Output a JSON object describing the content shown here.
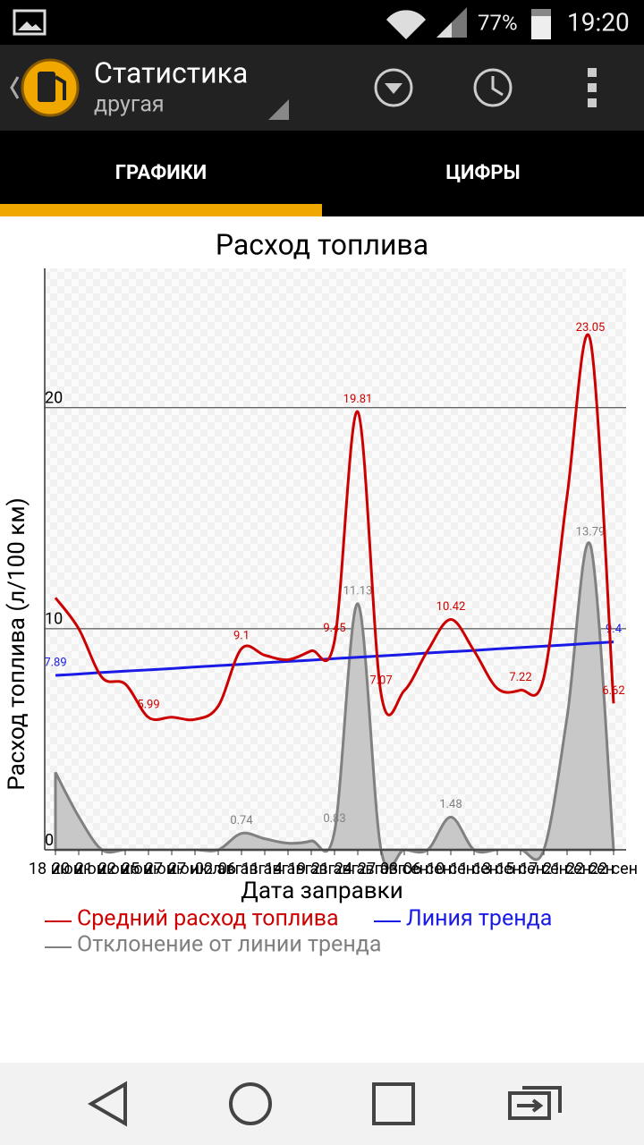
{
  "status_bar": {
    "battery": "77%",
    "time": "19:20"
  },
  "app_bar": {
    "title": "Статистика",
    "subtitle": "другая"
  },
  "tabs": [
    "ГРАФИКИ",
    "ЦИФРЫ"
  ],
  "chart_data": {
    "type": "line",
    "title": "Расход топлива",
    "x_label": "Дата заправки",
    "y_label": "Расход топлива (л/100 км)",
    "categories": [
      "18 июн",
      "20 июн",
      "21 июн",
      "22 июн",
      "25 июн",
      "27 июн",
      "27 июл",
      "02 авг",
      "06 авг",
      "11 авг",
      "14 авг",
      "19 авг",
      "21 авг",
      "24 авг",
      "27 авг",
      "03 сен",
      "06 сен",
      "10 сен",
      "11 сен",
      "13 сен",
      "15 сен",
      "17 сен",
      "21 сен",
      "22 сен",
      "22 сен"
    ],
    "ylim": [
      0,
      26.3
    ],
    "yticks": [
      0,
      10,
      20
    ],
    "grid": true,
    "series": [
      {
        "name": "Средний расход топлива",
        "color": "#cc0000",
        "values": [
          11.4,
          10.0,
          7.8,
          7.5,
          5.99,
          6.0,
          5.9,
          6.5,
          9.1,
          8.8,
          8.6,
          9.0,
          9.45,
          19.81,
          7.07,
          7.2,
          9.0,
          10.42,
          9.0,
          7.3,
          7.22,
          7.8,
          16.0,
          23.05,
          6.62
        ],
        "value_labels": [
          null,
          null,
          null,
          null,
          "5.99",
          null,
          null,
          null,
          "9.1",
          null,
          null,
          null,
          "9.45",
          "19.81",
          "7.07",
          null,
          null,
          "10.42",
          null,
          null,
          "7.22",
          null,
          null,
          "23.05",
          "6.62"
        ]
      },
      {
        "name": "Линия тренда",
        "color": "#1a1ae6",
        "values": [
          7.89,
          7.95,
          8.02,
          8.08,
          8.14,
          8.2,
          8.27,
          8.33,
          8.39,
          8.46,
          8.52,
          8.58,
          8.65,
          8.71,
          8.77,
          8.83,
          8.9,
          8.96,
          9.02,
          9.09,
          9.15,
          9.21,
          9.27,
          9.34,
          9.4
        ],
        "value_labels": [
          "7.89",
          null,
          null,
          null,
          null,
          null,
          null,
          null,
          null,
          null,
          null,
          null,
          null,
          null,
          null,
          null,
          null,
          null,
          null,
          null,
          null,
          null,
          null,
          null,
          "9.4"
        ]
      },
      {
        "name": "Отклонение от линии тренда",
        "color": "#808080",
        "area": true,
        "values": [
          3.5,
          1.5,
          0,
          0,
          0,
          0,
          0,
          0,
          0.74,
          0.5,
          0.3,
          0.4,
          0.83,
          11.13,
          0,
          0,
          0,
          1.48,
          0,
          0,
          0,
          0,
          6.0,
          13.79,
          0
        ],
        "value_labels": [
          null,
          null,
          null,
          null,
          null,
          null,
          null,
          null,
          "0.74",
          null,
          null,
          null,
          "0.83",
          "11.13",
          null,
          null,
          null,
          "1.48",
          null,
          null,
          null,
          null,
          null,
          "13.79",
          null
        ]
      }
    ]
  }
}
